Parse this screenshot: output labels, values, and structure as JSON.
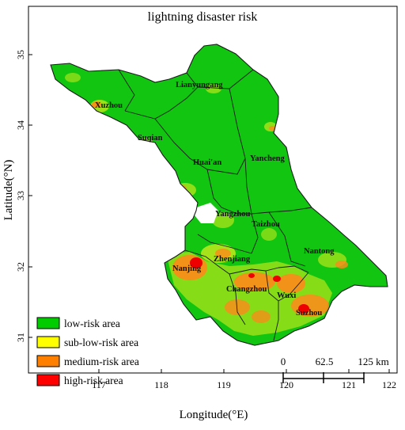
{
  "title": "lightning disaster risk",
  "axes": {
    "x_label": "Longitude(°E)",
    "y_label": "Latitude(°N)",
    "x_ticks": [
      "117",
      "118",
      "119",
      "120",
      "121",
      "122"
    ],
    "y_ticks": [
      "35",
      "34",
      "33",
      "32",
      "31"
    ]
  },
  "cities": [
    {
      "name": "Lianyungang"
    },
    {
      "name": "Xuzhou"
    },
    {
      "name": "Suqian"
    },
    {
      "name": "Huai'an"
    },
    {
      "name": "Yancheng"
    },
    {
      "name": "Yangzhou"
    },
    {
      "name": "Taizhou"
    },
    {
      "name": "Zhenjiang"
    },
    {
      "name": "Nanjing"
    },
    {
      "name": "Nantong"
    },
    {
      "name": "Changzhou"
    },
    {
      "name": "Wuxi"
    },
    {
      "name": "Suzhou"
    }
  ],
  "legend": [
    {
      "label": "low-risk area",
      "color": "#00cc00"
    },
    {
      "label": "sub-low-risk area",
      "color": "#ffff00"
    },
    {
      "label": "medium-risk area",
      "color": "#ff8000"
    },
    {
      "label": "high-risk area",
      "color": "#ff0000"
    }
  ],
  "scale_bar": {
    "labels": [
      "0",
      "62.5",
      "125 km"
    ]
  }
}
